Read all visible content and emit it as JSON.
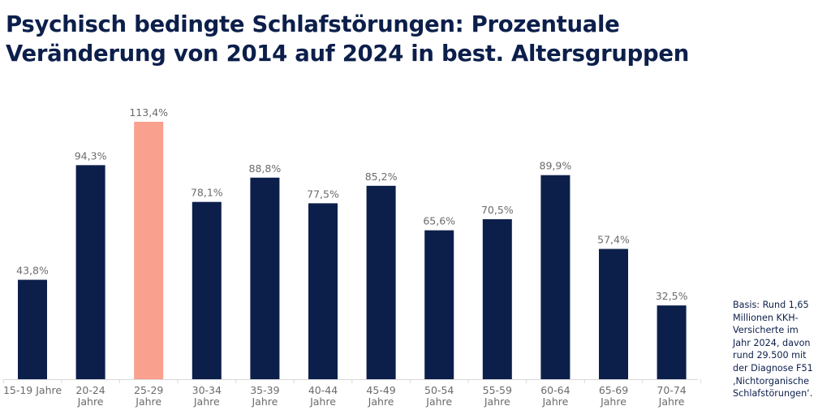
{
  "chart_data": {
    "type": "bar",
    "title_lines": [
      "Psychisch bedingte Schlafstörungen: Prozentuale",
      "Veränderung von 2014 auf 2024 in best. Altersgruppen"
    ],
    "xlabel": "",
    "ylabel": "",
    "categories": [
      [
        "15-19 Jahre"
      ],
      [
        "20-24",
        "Jahre"
      ],
      [
        "25-29",
        "Jahre"
      ],
      [
        "30-34",
        "Jahre"
      ],
      [
        "35-39",
        "Jahre"
      ],
      [
        "40-44",
        "Jahre"
      ],
      [
        "45-49",
        "Jahre"
      ],
      [
        "50-54",
        "Jahre"
      ],
      [
        "55-59",
        "Jahre"
      ],
      [
        "60-64",
        "Jahre"
      ],
      [
        "65-69",
        "Jahre"
      ],
      [
        "70-74",
        "Jahre"
      ]
    ],
    "values": [
      43.8,
      94.3,
      113.4,
      78.1,
      88.8,
      77.5,
      85.2,
      65.6,
      70.5,
      89.9,
      57.4,
      32.5
    ],
    "data_labels": [
      "43,8%",
      "94,3%",
      "113,4%",
      "78,1%",
      "88,8%",
      "77,5%",
      "85,2%",
      "65,6%",
      "70,5%",
      "89,9%",
      "57,4%",
      "32,5%"
    ],
    "highlight_index": 2,
    "ylim": [
      0,
      113.4
    ],
    "grid": false,
    "legend": "none",
    "colors": {
      "bar": "#0c1f4b",
      "highlight": "#f9a08e",
      "label": "#6b6b6b",
      "axis": "#d9d9d9",
      "title": "#0c1f4b"
    }
  },
  "note_lines": [
    "Basis: Rund 1,65",
    "Millionen KKH-",
    "Versicherte im",
    "Jahr 2024, davon",
    "rund 29.500 mit",
    "der Diagnose F51",
    "‚Nichtorganische",
    "Schlafstörungen‘."
  ]
}
